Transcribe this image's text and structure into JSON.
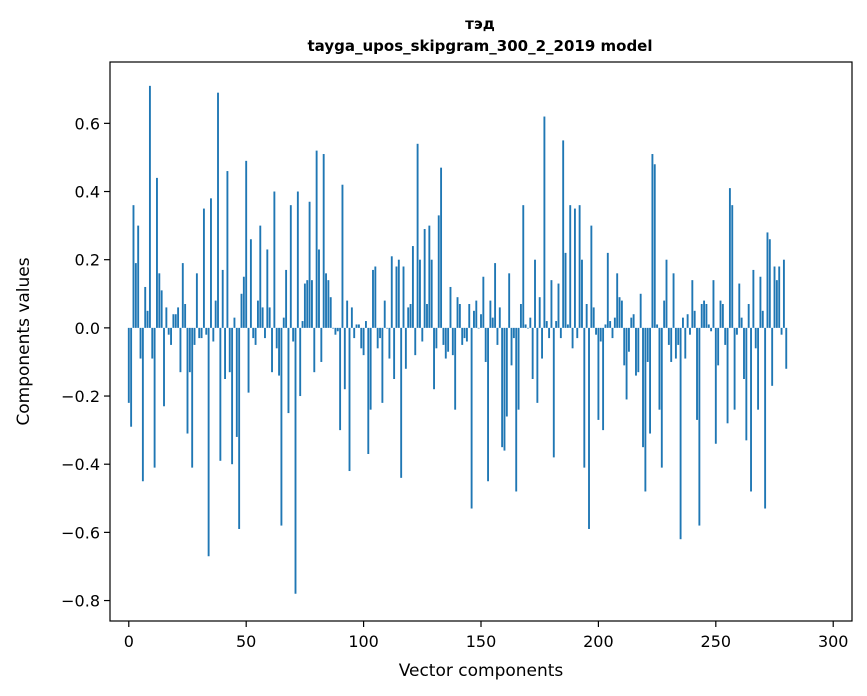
{
  "chart_data": {
    "type": "bar",
    "title": "тэд",
    "subtitle": "tayga_upos_skipgram_300_2_2019 model",
    "xlabel": "Vector components",
    "ylabel": "Components values",
    "xlim": [
      -8,
      308
    ],
    "ylim": [
      -0.86,
      0.78
    ],
    "xticks": [
      0,
      50,
      100,
      150,
      200,
      250,
      300
    ],
    "xtick_labels": [
      "0",
      "50",
      "100",
      "150",
      "200",
      "250",
      "300"
    ],
    "yticks": [
      -0.8,
      -0.6,
      -0.4,
      -0.2,
      0.0,
      0.2,
      0.4,
      0.6
    ],
    "ytick_labels": [
      "−0.8",
      "−0.6",
      "−0.4",
      "−0.2",
      "0.0",
      "0.2",
      "0.4",
      "0.6"
    ],
    "bar_color": "#1f77b4",
    "values": [
      -0.22,
      -0.29,
      0.36,
      0.19,
      0.3,
      -0.09,
      -0.45,
      0.12,
      0.05,
      0.71,
      -0.09,
      -0.41,
      0.44,
      0.16,
      0.11,
      -0.23,
      0.06,
      -0.02,
      -0.05,
      0.04,
      0.04,
      0.06,
      -0.13,
      0.19,
      0.07,
      -0.31,
      -0.13,
      -0.41,
      -0.05,
      0.16,
      -0.03,
      -0.03,
      0.35,
      -0.02,
      -0.67,
      0.38,
      -0.04,
      0.08,
      0.69,
      -0.39,
      0.17,
      -0.15,
      0.46,
      -0.13,
      -0.4,
      0.03,
      -0.32,
      -0.59,
      0.1,
      0.15,
      0.49,
      -0.19,
      0.26,
      -0.03,
      -0.05,
      0.08,
      0.3,
      0.06,
      -0.03,
      0.23,
      0.06,
      -0.13,
      0.4,
      -0.06,
      -0.14,
      -0.58,
      0.03,
      0.17,
      -0.25,
      0.36,
      -0.04,
      -0.78,
      0.4,
      -0.2,
      0.02,
      0.13,
      0.14,
      0.37,
      0.14,
      -0.13,
      0.52,
      0.23,
      -0.1,
      0.51,
      0.16,
      0.14,
      0.09,
      0.0,
      -0.02,
      -0.01,
      -0.3,
      0.42,
      -0.18,
      0.08,
      -0.42,
      0.06,
      -0.03,
      0.01,
      0.01,
      -0.06,
      -0.08,
      0.02,
      -0.37,
      -0.24,
      0.17,
      0.18,
      -0.06,
      -0.03,
      -0.22,
      0.08,
      0.0,
      -0.09,
      0.21,
      -0.15,
      0.18,
      0.2,
      -0.44,
      0.18,
      -0.12,
      0.06,
      0.07,
      0.24,
      -0.08,
      0.54,
      0.2,
      -0.04,
      0.29,
      0.07,
      0.3,
      0.2,
      -0.18,
      -0.06,
      0.33,
      0.47,
      -0.05,
      -0.09,
      -0.07,
      0.12,
      -0.08,
      -0.24,
      0.09,
      0.07,
      -0.05,
      -0.03,
      -0.04,
      0.07,
      -0.53,
      0.05,
      0.08,
      0.0,
      0.04,
      0.15,
      -0.1,
      -0.45,
      0.08,
      0.03,
      0.19,
      -0.05,
      0.06,
      -0.35,
      -0.36,
      -0.26,
      0.16,
      -0.11,
      -0.03,
      -0.48,
      -0.24,
      0.07,
      0.36,
      0.01,
      0.0,
      0.03,
      -0.15,
      0.2,
      -0.22,
      0.09,
      -0.09,
      0.62,
      0.02,
      -0.03,
      0.14,
      -0.38,
      0.02,
      0.13,
      -0.03,
      0.55,
      0.22,
      0.01,
      0.36,
      -0.06,
      0.35,
      -0.03,
      0.36,
      0.2,
      -0.41,
      0.07,
      -0.59,
      0.3,
      0.06,
      -0.02,
      -0.27,
      -0.04,
      -0.3,
      0.01,
      0.22,
      0.02,
      -0.03,
      0.03,
      0.16,
      0.09,
      0.08,
      -0.11,
      -0.21,
      -0.07,
      0.03,
      0.04,
      -0.14,
      -0.13,
      0.1,
      -0.35,
      -0.48,
      -0.1,
      -0.31,
      0.51,
      0.48,
      0.01,
      -0.24,
      -0.41,
      0.08,
      0.2,
      -0.05,
      -0.1,
      0.16,
      -0.09,
      -0.05,
      -0.62,
      0.03,
      -0.09,
      0.04,
      -0.02,
      0.14,
      0.05,
      -0.27,
      -0.58,
      0.07,
      0.08,
      0.07,
      0.01,
      -0.01,
      0.14,
      -0.34,
      -0.11,
      0.08,
      0.07,
      -0.05,
      -0.28,
      0.41,
      0.36,
      -0.24,
      -0.02,
      0.13,
      0.03,
      -0.15,
      -0.33,
      0.07,
      -0.48,
      0.17,
      -0.06,
      -0.24,
      0.15,
      0.05,
      -0.53,
      0.28,
      0.26,
      -0.17,
      0.18,
      0.14,
      0.18,
      -0.02,
      0.2,
      -0.12
    ]
  }
}
